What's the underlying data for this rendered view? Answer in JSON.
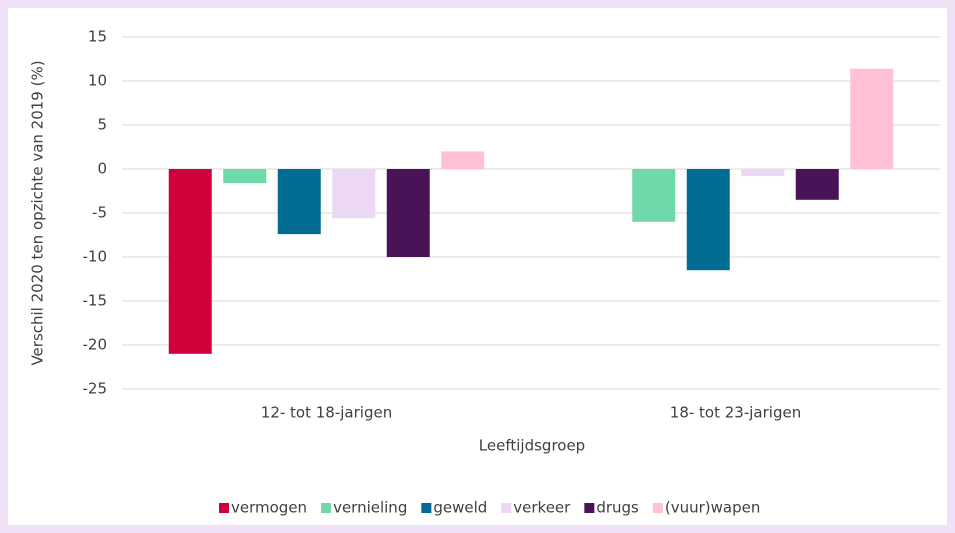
{
  "chart_data": {
    "type": "bar",
    "xlabel": "Leeftijdsgroep",
    "ylabel": "Verschil 2020 ten opzichte van 2019 (%)",
    "categories": [
      "12- tot 18-jarigen",
      "18- tot 23-jarigen"
    ],
    "series": [
      {
        "name": "vermogen",
        "color": "#d0003a",
        "values": [
          -21,
          null
        ]
      },
      {
        "name": "vernieling",
        "color": "#6fd9a9",
        "values": [
          -1.6,
          -6
        ]
      },
      {
        "name": "geweld",
        "color": "#006b93",
        "values": [
          -7.4,
          -11.5
        ]
      },
      {
        "name": "verkeer",
        "color": "#ecd7f5",
        "values": [
          -5.6,
          -0.8
        ]
      },
      {
        "name": "drugs",
        "color": "#4a1257",
        "values": [
          -10,
          -3.5
        ]
      },
      {
        "name": "(vuur)wapen",
        "color": "#ffc2d4",
        "values": [
          2,
          11.4
        ]
      }
    ],
    "ylim": [
      -25,
      15
    ],
    "yticks": [
      -25,
      -20,
      -15,
      -10,
      -5,
      0,
      5,
      10,
      15
    ],
    "grid": true,
    "legend": "bottom"
  }
}
